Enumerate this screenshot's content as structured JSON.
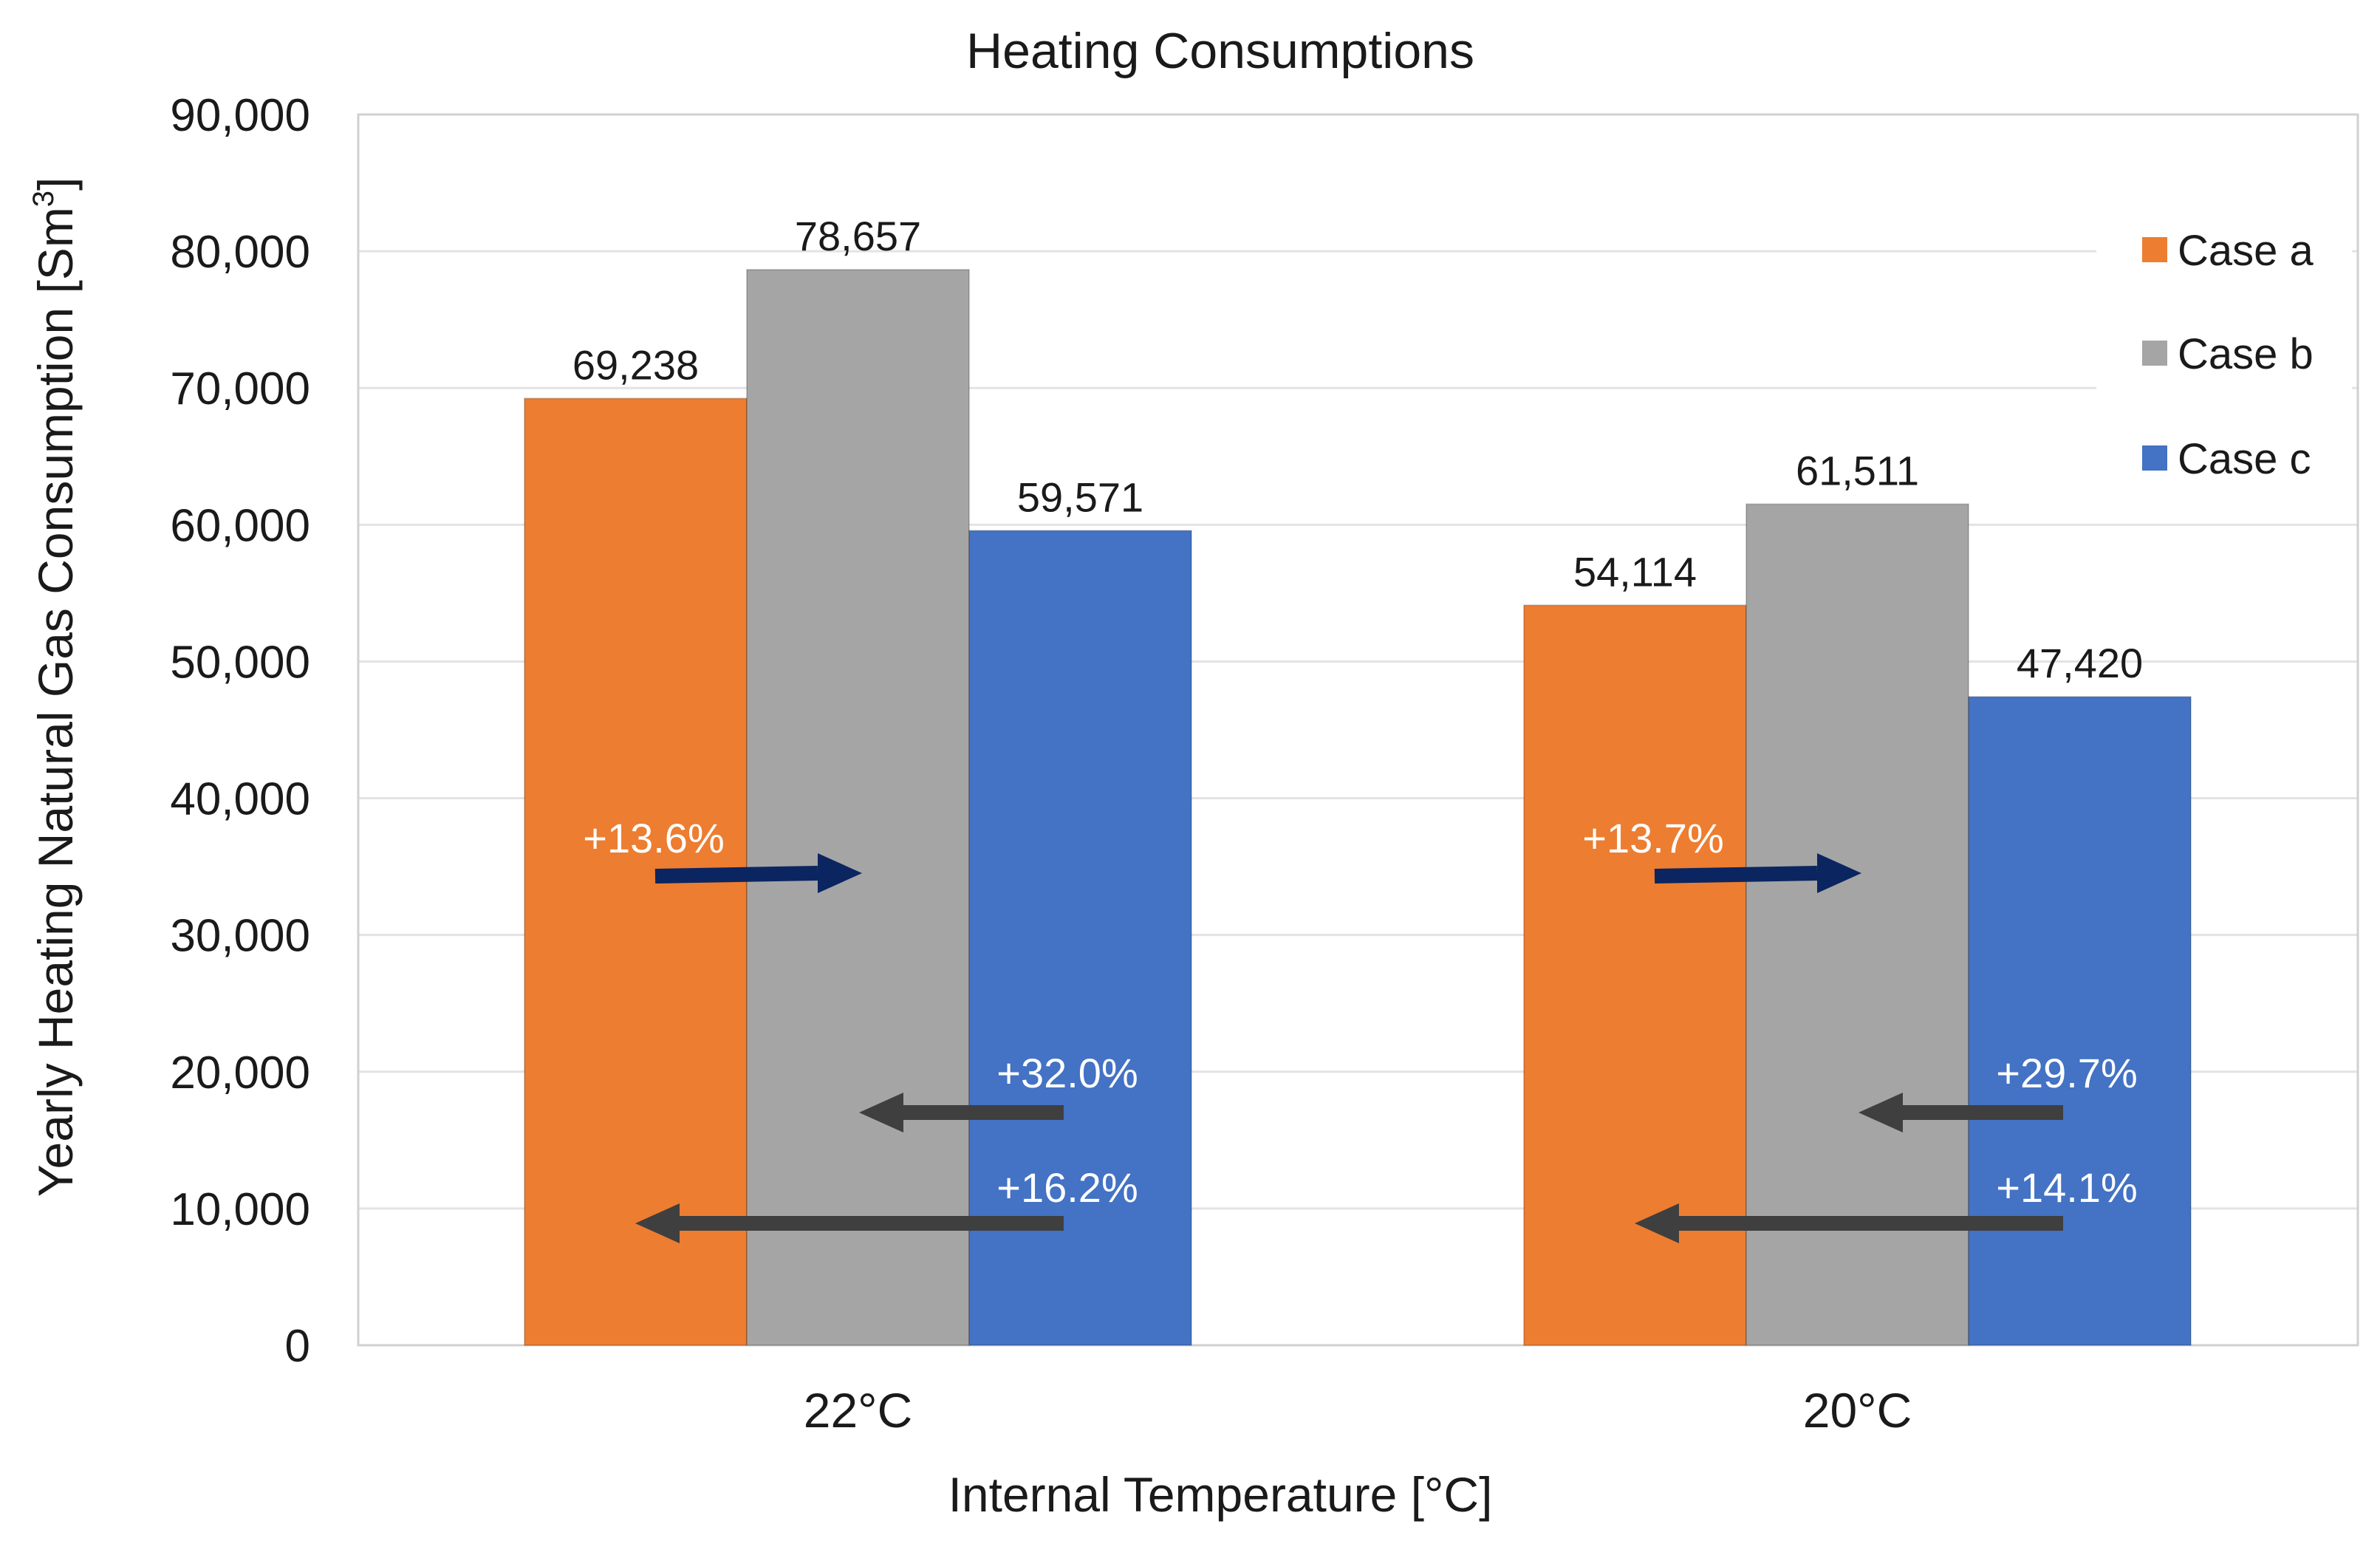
{
  "chart_data": {
    "type": "bar",
    "title": "Heating Consumptions",
    "xlabel": "Internal Temperature   [°C]",
    "ylabel": "Yearly Heating Natural Gas Consumption  [Sm",
    "ylabel_sup": "3",
    "ylabel_end": "]",
    "ylim": [
      0,
      90000
    ],
    "yticks": [
      0,
      10000,
      20000,
      30000,
      40000,
      50000,
      60000,
      70000,
      80000,
      90000
    ],
    "ytick_labels": [
      "0",
      "10,000",
      "20,000",
      "30,000",
      "40,000",
      "50,000",
      "60,000",
      "70,000",
      "80,000",
      "90,000"
    ],
    "grid": true,
    "legend_position": "top-right",
    "categories": [
      "22°C",
      "20°C"
    ],
    "series": [
      {
        "name": "Case a",
        "color": "#ED7D31",
        "values": [
          69238,
          54114
        ],
        "labels": [
          "69,238",
          "54,114"
        ]
      },
      {
        "name": "Case b",
        "color": "#A5A5A5",
        "values": [
          78657,
          61511
        ],
        "labels": [
          "78,657",
          "61,511"
        ]
      },
      {
        "name": "Case c",
        "color": "#4472C4",
        "values": [
          59571,
          47420
        ],
        "labels": [
          "59,571",
          "47,420"
        ]
      }
    ],
    "annotations": [
      {
        "category": "22°C",
        "text": "+13.6%",
        "arrow": "a-to-b",
        "arrow_color": "#0B2560"
      },
      {
        "category": "22°C",
        "text": "+32.0%",
        "arrow": "c-to-b",
        "arrow_color": "#3F3F3F"
      },
      {
        "category": "22°C",
        "text": "+16.2%",
        "arrow": "c-to-a",
        "arrow_color": "#3F3F3F"
      },
      {
        "category": "20°C",
        "text": "+13.7%",
        "arrow": "a-to-b",
        "arrow_color": "#0B2560"
      },
      {
        "category": "20°C",
        "text": "+29.7%",
        "arrow": "c-to-b",
        "arrow_color": "#3F3F3F"
      },
      {
        "category": "20°C",
        "text": "+14.1%",
        "arrow": "c-to-a",
        "arrow_color": "#3F3F3F"
      }
    ]
  }
}
